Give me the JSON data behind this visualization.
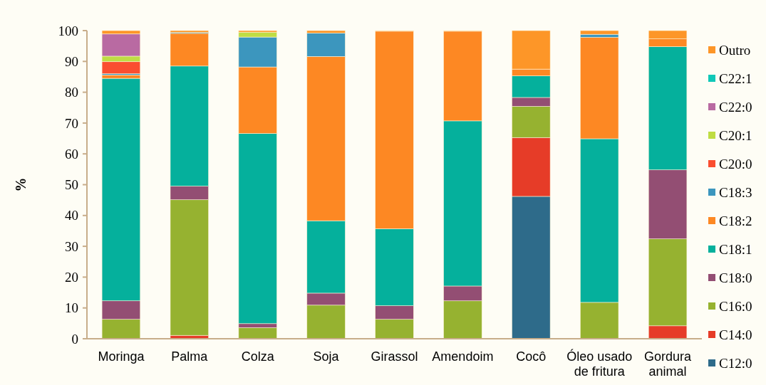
{
  "chart_data": {
    "type": "bar",
    "stacked": true,
    "ylabel": "%",
    "ylim": [
      0,
      100
    ],
    "yticks": [
      0,
      10,
      20,
      30,
      40,
      50,
      60,
      70,
      80,
      90,
      100
    ],
    "grid": false,
    "legend": "right",
    "categories": [
      "Moringa",
      "Palma",
      "Colza",
      "Soja",
      "Girassol",
      "Amendoim",
      "Cocô",
      "Óleo usado de fritura",
      "Gordura animal"
    ],
    "series": [
      {
        "name": "C12:0",
        "color": "#2e6b8a",
        "values": [
          0,
          0,
          0,
          0,
          0,
          0,
          46.2,
          0,
          0
        ]
      },
      {
        "name": "C14:0",
        "color": "#e63c28",
        "values": [
          0,
          1.1,
          0,
          0,
          0,
          0,
          19.1,
          0,
          4.2
        ]
      },
      {
        "name": "C16:0",
        "color": "#96b230",
        "values": [
          6.3,
          44.0,
          3.6,
          10.9,
          6.3,
          12.3,
          10.1,
          11.8,
          28.2
        ]
      },
      {
        "name": "C18:0",
        "color": "#934e73",
        "values": [
          6.0,
          4.4,
          1.3,
          3.9,
          4.4,
          4.8,
          2.9,
          0,
          22.4
        ]
      },
      {
        "name": "C18:1",
        "color": "#05b09c",
        "values": [
          72.2,
          39.0,
          61.7,
          23.5,
          25.0,
          53.6,
          7.0,
          53.1,
          40.0
        ]
      },
      {
        "name": "C18:2",
        "color": "#fd8823",
        "values": [
          1.1,
          10.6,
          21.6,
          53.3,
          64.1,
          29.1,
          2.2,
          32.9,
          2.5
        ]
      },
      {
        "name": "C18:3",
        "color": "#3c96be",
        "values": [
          0.4,
          0.3,
          9.7,
          7.6,
          0,
          0,
          0,
          1.0,
          0
        ]
      },
      {
        "name": "C20:0",
        "color": "#fa4e30",
        "values": [
          3.9,
          0,
          0,
          0,
          0,
          0,
          0,
          0,
          0
        ]
      },
      {
        "name": "C20:1",
        "color": "#bfdd44",
        "values": [
          1.8,
          0,
          1.6,
          0,
          0,
          0,
          0,
          0,
          0
        ]
      },
      {
        "name": "C22:0",
        "color": "#b96aa2",
        "values": [
          7.2,
          0,
          0,
          0,
          0,
          0,
          0,
          0,
          0
        ]
      },
      {
        "name": "C22:1",
        "color": "#10c8b8",
        "values": [
          0,
          0,
          0,
          0,
          0,
          0,
          0,
          0,
          0
        ]
      },
      {
        "name": "Outro",
        "color": "#fd9628",
        "values": [
          1.1,
          0.6,
          0.5,
          0.8,
          0.2,
          0.2,
          12.5,
          1.2,
          2.7
        ]
      }
    ]
  }
}
